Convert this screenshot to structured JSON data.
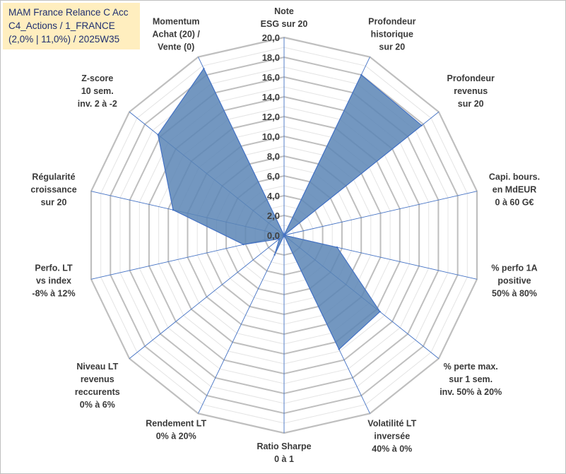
{
  "title_lines": [
    "MAM France Relance C Acc",
    "C4_Actions / 1_FRANCE",
    "(2,0% | 11,0%) / 2025W35"
  ],
  "chart_data": {
    "type": "radar",
    "rmin": 0,
    "rmax": 20,
    "tick_step": 2,
    "tick_labels": [
      "0,0",
      "2,0",
      "4,0",
      "6,0",
      "8,0",
      "10,0",
      "12,0",
      "14,0",
      "16,0",
      "18,0",
      "20,0"
    ],
    "axes": [
      {
        "label": [
          "Note",
          "ESG sur 20"
        ],
        "value": 0
      },
      {
        "label": [
          "Profondeur",
          "historique",
          "sur 20"
        ],
        "value": 18
      },
      {
        "label": [
          "Profondeur",
          "revenus",
          "sur 20"
        ],
        "value": 17.8
      },
      {
        "label": [
          "Capi. bours.",
          "en MdEUR",
          "0 à 60 G€"
        ],
        "value": 0
      },
      {
        "label": [
          "% perfo 1A",
          "positive",
          "50% à 80%"
        ],
        "value": 5.5
      },
      {
        "label": [
          "% perte max.",
          "sur 1 sem.",
          "inv. 50% à 20%"
        ],
        "value": 12.4
      },
      {
        "label": [
          "Volatilité LT",
          "inversée",
          "40% à 0%"
        ],
        "value": 12.8
      },
      {
        "label": [
          "Ratio Sharpe",
          "0 à 1"
        ],
        "value": 0
      },
      {
        "label": [
          "Rendement LT",
          "0% à 20%"
        ],
        "value": 2.2
      },
      {
        "label": [
          "Niveau LT",
          "revenus",
          "reccurents",
          "0% à 6%"
        ],
        "value": 0.6
      },
      {
        "label": [
          "Perfo. LT",
          "vs index",
          "-8% à 12%"
        ],
        "value": 4.2
      },
      {
        "label": [
          "Régularité",
          "croissance",
          "sur 20"
        ],
        "value": 11.5
      },
      {
        "label": [
          "Z-score",
          "10 sem.",
          "inv. 2 à -2"
        ],
        "value": 16.3
      },
      {
        "label": [
          "Momentum",
          "Achat (20) /",
          "Vente (0)"
        ],
        "value": 18.7
      }
    ],
    "colors": {
      "fill": "#5a85b5",
      "stroke": "#4472c4",
      "grid_major": "#bfbfbf",
      "grid_minor": "#e4e4e4",
      "spoke": "#4472c4"
    },
    "legend": "none"
  }
}
